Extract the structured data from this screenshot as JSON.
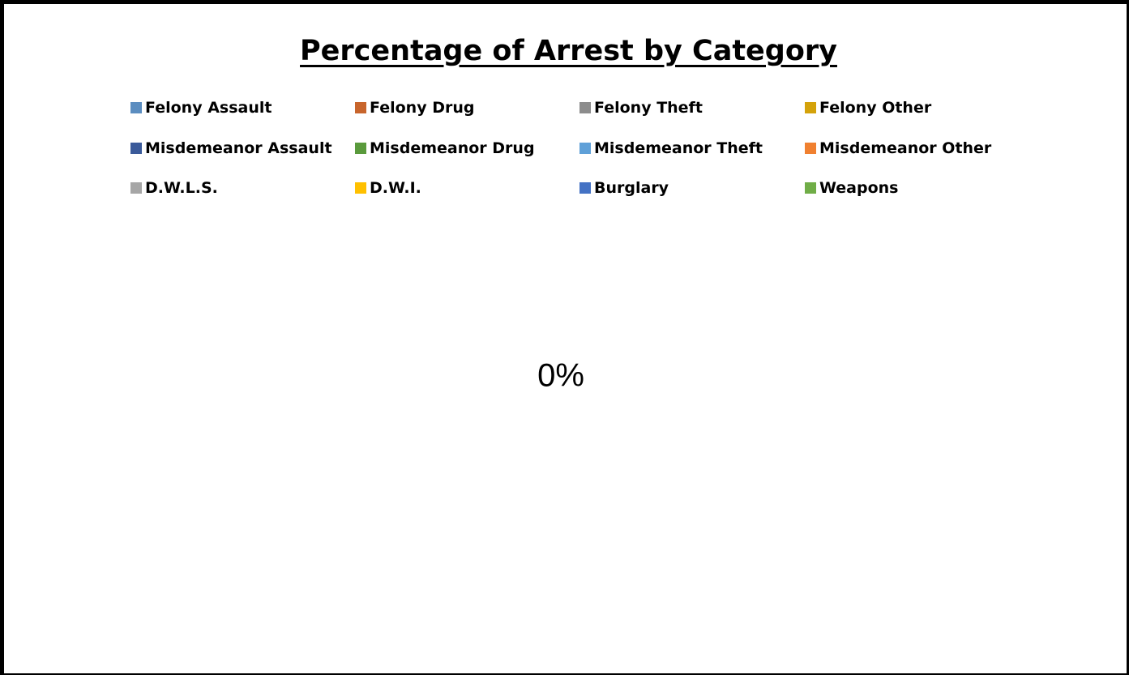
{
  "chart_data": {
    "type": "pie",
    "title": "Percentage of Arrest by Category",
    "legend_position": "top",
    "categories": [
      "Felony Assault",
      "Felony Drug",
      "Felony Theft",
      "Felony Other",
      "Misdemeanor Assault",
      "Misdemeanor Drug",
      "Misdemeanor Theft",
      "Misdemeanor Other",
      "D.W.L.S.",
      "D.W.I.",
      "Burglary",
      "Weapons"
    ],
    "colors": [
      "#5B8DC0",
      "#C8652C",
      "#8C8C8C",
      "#D4A20A",
      "#3A5A9A",
      "#5A9A3C",
      "#5FA0D8",
      "#F08030",
      "#A6A6A6",
      "#FFC000",
      "#4472C4",
      "#70AD47"
    ],
    "data_labels": [
      "0%"
    ]
  }
}
